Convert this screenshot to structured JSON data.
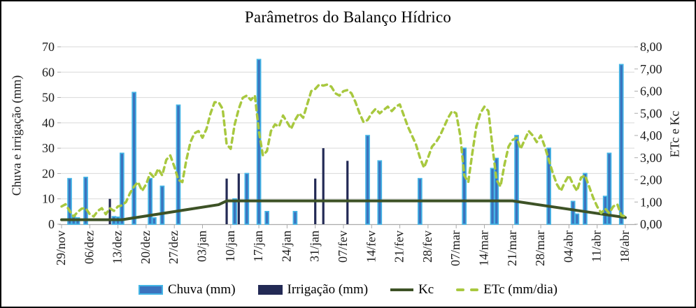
{
  "chart_data": {
    "type": "combo-bar-line",
    "title": "Parâmetros do Balanço Hídrico",
    "grid": "horizontal",
    "x_axis": {
      "tick_labels": [
        "29/nov",
        "06/dez",
        "13/dez",
        "20/dez",
        "27/dez",
        "03/jan",
        "10/jan",
        "17/jan",
        "24/jan",
        "31/jan",
        "07/fev",
        "14/fev",
        "21/fev",
        "28/fev",
        "07/mar",
        "14/mar",
        "21/mar",
        "28/mar",
        "04/abr",
        "11/abr",
        "18/abr"
      ],
      "tick_every_days": 7,
      "days_total": 141
    },
    "left_axis": {
      "label": "Chuva e irrigação (mm)",
      "min": 0,
      "max": 70,
      "step": 10,
      "tick_labels": [
        "0",
        "10",
        "20",
        "30",
        "40",
        "50",
        "60",
        "70"
      ]
    },
    "right_axis": {
      "label": "ETc e Kc",
      "min": 0,
      "max": 8,
      "step": 1,
      "tick_labels": [
        "0,00",
        "1,00",
        "2,00",
        "3,00",
        "4,00",
        "5,00",
        "6,00",
        "7,00",
        "8,00"
      ]
    },
    "legend": {
      "position": "bottom",
      "entries": [
        "Chuva (mm)",
        "Irrigação (mm)",
        "Kc",
        "ETc (mm/dia)"
      ]
    },
    "colors": {
      "chuva_fill": "#3B72BD",
      "chuva_border": "#44B5E6",
      "irrigacao": "#232A55",
      "kc": "#3D5226",
      "etc": "#A8C83F",
      "gridline": "#D9D9D9",
      "axis": "#ABABAB"
    },
    "series": {
      "chuva": {
        "name": "Chuva (mm)",
        "type": "bar",
        "axis": "left",
        "points": [
          {
            "date": "01/dez",
            "day": 2,
            "mm": 18
          },
          {
            "date": "02/dez",
            "day": 3,
            "mm": 3
          },
          {
            "date": "03/dez",
            "day": 4,
            "mm": 2.5
          },
          {
            "date": "05/dez",
            "day": 6,
            "mm": 18.5
          },
          {
            "date": "12/dez",
            "day": 13,
            "mm": 3
          },
          {
            "date": "13/dez",
            "day": 14,
            "mm": 2.8
          },
          {
            "date": "14/dez",
            "day": 15,
            "mm": 28
          },
          {
            "date": "17/dez",
            "day": 18,
            "mm": 52
          },
          {
            "date": "21/dez",
            "day": 22,
            "mm": 18
          },
          {
            "date": "22/dez",
            "day": 23,
            "mm": 2.5
          },
          {
            "date": "24/dez",
            "day": 25,
            "mm": 15
          },
          {
            "date": "28/dez",
            "day": 29,
            "mm": 47
          },
          {
            "date": "11/jan",
            "day": 43,
            "mm": 10
          },
          {
            "date": "14/jan",
            "day": 46,
            "mm": 20
          },
          {
            "date": "17/jan",
            "day": 49,
            "mm": 65
          },
          {
            "date": "19/jan",
            "day": 51,
            "mm": 5
          },
          {
            "date": "26/jan",
            "day": 58,
            "mm": 5
          },
          {
            "date": "13/fev",
            "day": 76,
            "mm": 35
          },
          {
            "date": "16/fev",
            "day": 79,
            "mm": 25
          },
          {
            "date": "26/fev",
            "day": 89,
            "mm": 18
          },
          {
            "date": "09/mar",
            "day": 100,
            "mm": 30
          },
          {
            "date": "16/mar",
            "day": 107,
            "mm": 22
          },
          {
            "date": "17/mar",
            "day": 108,
            "mm": 26
          },
          {
            "date": "22/mar",
            "day": 113,
            "mm": 35
          },
          {
            "date": "30/mar",
            "day": 121,
            "mm": 30
          },
          {
            "date": "05/abr",
            "day": 127,
            "mm": 9
          },
          {
            "date": "06/abr",
            "day": 128,
            "mm": 4
          },
          {
            "date": "08/abr",
            "day": 130,
            "mm": 20
          },
          {
            "date": "13/abr",
            "day": 135,
            "mm": 11
          },
          {
            "date": "14/abr",
            "day": 136,
            "mm": 28
          },
          {
            "date": "17/abr",
            "day": 139,
            "mm": 63
          }
        ]
      },
      "irrigacao": {
        "name": "Irrigação (mm)",
        "type": "bar",
        "axis": "left",
        "points": [
          {
            "date": "11/dez",
            "day": 12,
            "mm": 10
          },
          {
            "date": "09/jan",
            "day": 41,
            "mm": 18
          },
          {
            "date": "12/jan",
            "day": 44,
            "mm": 20
          },
          {
            "date": "31/jan",
            "day": 63,
            "mm": 18
          },
          {
            "date": "02/fev",
            "day": 65,
            "mm": 30
          },
          {
            "date": "08/fev",
            "day": 71,
            "mm": 25
          }
        ]
      },
      "kc": {
        "name": "Kc",
        "type": "line",
        "axis": "right",
        "points": [
          {
            "day": 0,
            "value": 0.2
          },
          {
            "day": 15,
            "value": 0.2
          },
          {
            "day": 39,
            "value": 0.88
          },
          {
            "day": 41,
            "value": 1.05
          },
          {
            "day": 112,
            "value": 1.05
          },
          {
            "day": 140,
            "value": 0.3
          }
        ]
      },
      "etc": {
        "name": "ETc (mm/dia)",
        "type": "dashed-line",
        "axis": "right",
        "daily_values": [
          0.8,
          0.9,
          0.6,
          0.35,
          0.55,
          0.7,
          0.72,
          0.45,
          0.35,
          0.6,
          0.72,
          0.45,
          0.72,
          0.6,
          0.8,
          0.85,
          1.0,
          1.4,
          1.7,
          1.9,
          1.5,
          1.8,
          2.3,
          2.1,
          2.5,
          2.2,
          2.9,
          3.1,
          2.6,
          2.0,
          1.9,
          2.9,
          3.7,
          4.1,
          4.2,
          3.9,
          4.3,
          5.0,
          5.5,
          5.5,
          5.2,
          3.6,
          3.4,
          4.5,
          5.2,
          5.7,
          5.8,
          5.6,
          5.8,
          4.2,
          3.1,
          3.3,
          4.2,
          4.5,
          4.4,
          4.9,
          4.6,
          4.3,
          4.7,
          5.0,
          4.8,
          5.4,
          6.0,
          6.1,
          6.3,
          6.25,
          6.3,
          6.2,
          5.9,
          5.8,
          6.0,
          6.05,
          5.9,
          5.5,
          5.0,
          4.6,
          4.7,
          5.0,
          5.2,
          5.0,
          5.15,
          5.3,
          5.1,
          5.3,
          5.4,
          4.9,
          4.4,
          4.0,
          3.6,
          3.0,
          2.55,
          3.0,
          3.5,
          3.7,
          4.0,
          4.4,
          4.8,
          5.1,
          5.0,
          4.0,
          2.2,
          1.9,
          3.2,
          4.4,
          5.0,
          5.3,
          5.1,
          3.5,
          2.0,
          1.7,
          2.7,
          3.5,
          3.8,
          3.9,
          3.4,
          3.8,
          4.2,
          4.0,
          3.7,
          4.0,
          3.5,
          2.9,
          2.3,
          1.8,
          1.5,
          1.9,
          2.2,
          1.8,
          1.5,
          2.1,
          2.2,
          1.7,
          1.2,
          0.8,
          0.5,
          0.7,
          0.5,
          0.8,
          0.9,
          0.4,
          0.35
        ]
      }
    }
  }
}
